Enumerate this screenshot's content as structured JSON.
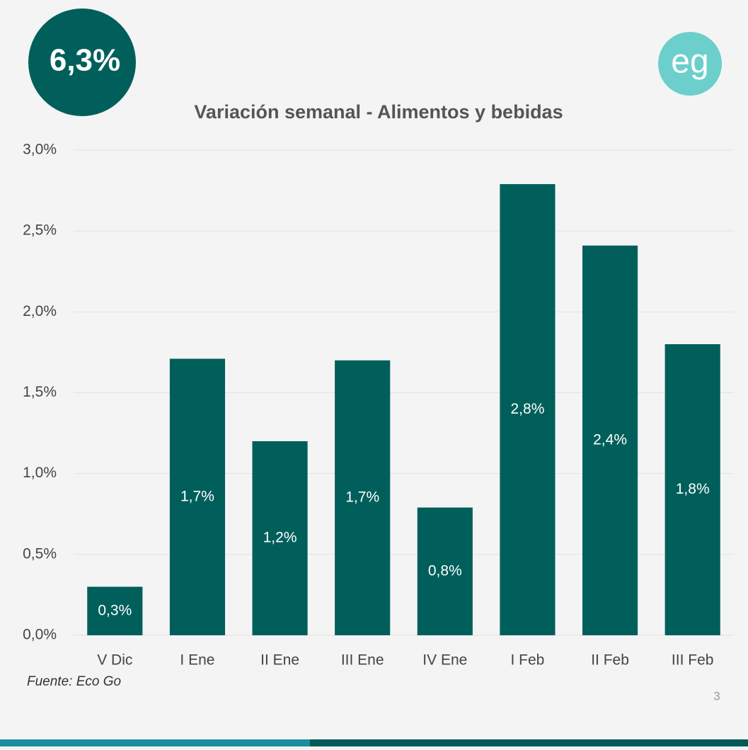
{
  "chart_data": {
    "type": "bar",
    "badge": "6,3%",
    "logo": "eg",
    "title": "Variación semanal - Alimentos y bebidas",
    "categories": [
      "V Dic",
      "I Ene",
      "II Ene",
      "III Ene",
      "IV Ene",
      "I Feb",
      "II Feb",
      "III Feb"
    ],
    "values": [
      0.3,
      1.71,
      1.2,
      1.7,
      0.79,
      2.79,
      2.41,
      1.8
    ],
    "value_labels": [
      "0,3%",
      "1,7%",
      "1,2%",
      "1,7%",
      "0,8%",
      "2,8%",
      "2,4%",
      "1,8%"
    ],
    "color": "#005f5b",
    "ylim": [
      0,
      3
    ],
    "yticks": [
      {
        "value": 0,
        "label": "0,0%"
      },
      {
        "value": 0.5,
        "label": "0,5%"
      },
      {
        "value": 1,
        "label": "1,0%"
      },
      {
        "value": 1.5,
        "label": "1,5%"
      },
      {
        "value": 2,
        "label": "2,0%"
      },
      {
        "value": 2.5,
        "label": "2,5%"
      },
      {
        "value": 3,
        "label": "3,0%"
      }
    ],
    "grid": true,
    "source": "Fuente: Eco Go",
    "page_number": "3"
  }
}
